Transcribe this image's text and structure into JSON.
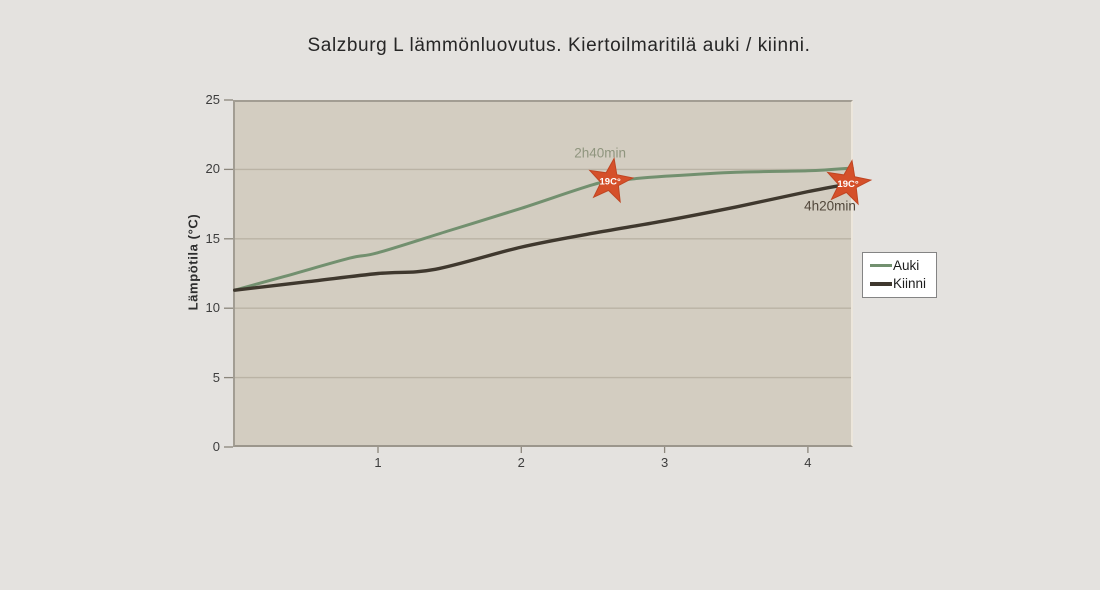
{
  "title": "Salzburg L lämmönluovutus. Kiertoilmaritilä auki / kiinni.",
  "y_axis": {
    "label": "Lämpötila (°C)"
  },
  "colors": {
    "background": "#e4e2df",
    "plot_background": "#d3cdc1",
    "gridline": "#bab3a5",
    "plot_border": "#a29d93",
    "axis_tick": "#8b867c",
    "axis_text": "#3d3d3d",
    "title_text": "#262626",
    "star_fill": "#d5502a",
    "star_stroke": "#c04522",
    "star_text": "#ffffff"
  },
  "chart_data": {
    "type": "line",
    "title": "Salzburg L lämmönluovutus. Kiertoilmaritilä auki / kiinni.",
    "xlabel": "",
    "ylabel": "Lämpötila (°C)",
    "xlim": [
      0,
      4.31
    ],
    "ylim": [
      0,
      25
    ],
    "x_ticks": [
      1,
      2,
      3,
      4
    ],
    "y_ticks": [
      0,
      5,
      10,
      15,
      20,
      25
    ],
    "grid": "horizontal",
    "legend_position": "right",
    "series": [
      {
        "name": "Auki",
        "color": "#72906f",
        "points": [
          [
            0,
            11.3
          ],
          [
            0.35,
            12.3
          ],
          [
            0.8,
            13.6
          ],
          [
            1,
            14.0
          ],
          [
            1.5,
            15.6
          ],
          [
            2,
            17.2
          ],
          [
            2.5,
            18.9
          ],
          [
            2.67,
            19.2
          ],
          [
            3,
            19.5
          ],
          [
            3.5,
            19.8
          ],
          [
            4,
            19.9
          ],
          [
            4.31,
            20.1
          ]
        ]
      },
      {
        "name": "Kiinni",
        "color": "#3f382e",
        "points": [
          [
            0,
            11.3
          ],
          [
            0.5,
            11.9
          ],
          [
            1,
            12.5
          ],
          [
            1.4,
            12.8
          ],
          [
            2,
            14.4
          ],
          [
            2.5,
            15.4
          ],
          [
            3,
            16.3
          ],
          [
            3.5,
            17.3
          ],
          [
            4,
            18.4
          ],
          [
            4.31,
            19.0
          ]
        ]
      }
    ],
    "markers": [
      {
        "x": 2.62,
        "y": 19.15,
        "label": "19C°",
        "series": "Auki",
        "annotation": "2h40min",
        "annotation_pos": "above",
        "annotation_color": "#8f957e"
      },
      {
        "x": 4.28,
        "y": 19.0,
        "label": "19C°",
        "series": "Kiinni",
        "annotation": "4h20min",
        "annotation_pos": "below-left",
        "annotation_color": "#51473b"
      }
    ]
  }
}
